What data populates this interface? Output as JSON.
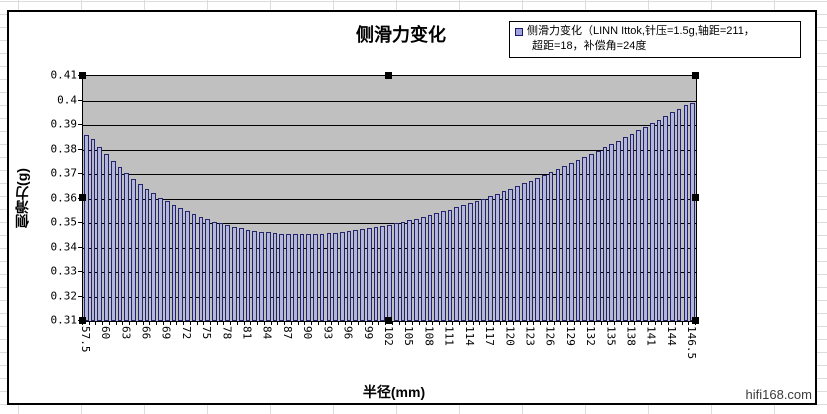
{
  "chart": {
    "title": "侧滑力变化",
    "legend": {
      "line1": "侧滑力变化（LINN Ittok,针压=1.5g,轴距=211，",
      "line2": "超距=18，补偿角=24度",
      "marker_color": "#9fa3de",
      "marker_border": "#1a1a6a"
    },
    "y_axis_title": "侧滑力(g)",
    "x_axis_title": "半径(mm)",
    "watermark": "hifi168.com"
  },
  "colors": {
    "plot_background": "#c0c0c0",
    "gridline": "#000000",
    "bar_fill": "#b2b6d8",
    "bar_border": "#24246e",
    "chart_border": "#000000"
  },
  "chart_data": {
    "type": "bar",
    "title": "侧滑力变化",
    "series_name": "侧滑力变化（LINN Ittok,针压=1.5g,轴距=211，超距=18，补偿角=24度",
    "xlabel": "半径(mm)",
    "ylabel": "侧滑力(g)",
    "ylim": [
      0.31,
      0.41
    ],
    "ytick_labels": [
      "0.41",
      "0.4",
      "0.39",
      "0.38",
      "0.37",
      "0.36",
      "0.35",
      "0.34",
      "0.33",
      "0.32",
      "0.31"
    ],
    "grid": true,
    "legend_position": "top-right",
    "x_label_shown_every": 3,
    "categories": [
      "57.5",
      "58",
      "59",
      "60",
      "61",
      "62",
      "63",
      "64",
      "65",
      "66",
      "67",
      "68",
      "69",
      "70",
      "71",
      "72",
      "73",
      "74",
      "75",
      "76",
      "77",
      "78",
      "79",
      "80",
      "81",
      "82",
      "83",
      "84",
      "85",
      "86",
      "87",
      "88",
      "89",
      "90",
      "91",
      "92",
      "93",
      "94",
      "95",
      "96",
      "97",
      "98",
      "99",
      "100",
      "101",
      "102",
      "103",
      "104",
      "105",
      "106",
      "107",
      "108",
      "109",
      "110",
      "111",
      "112",
      "113",
      "114",
      "115",
      "116",
      "117",
      "118",
      "119",
      "120",
      "121",
      "122",
      "123",
      "124",
      "125",
      "126",
      "127",
      "128",
      "129",
      "130",
      "131",
      "132",
      "133",
      "134",
      "135",
      "136",
      "137",
      "138",
      "139",
      "140",
      "141",
      "142",
      "143",
      "144",
      "145",
      "146",
      "146.5"
    ],
    "values": [
      0.386,
      0.3843,
      0.3812,
      0.3782,
      0.3754,
      0.3728,
      0.3704,
      0.3681,
      0.366,
      0.364,
      0.3622,
      0.3604,
      0.3588,
      0.3573,
      0.356,
      0.3547,
      0.3535,
      0.3525,
      0.3515,
      0.3506,
      0.3498,
      0.349,
      0.3484,
      0.3478,
      0.3473,
      0.3468,
      0.3465,
      0.3462,
      0.3459,
      0.3457,
      0.3456,
      0.3455,
      0.3455,
      0.3455,
      0.3456,
      0.3457,
      0.3459,
      0.3461,
      0.3463,
      0.3467,
      0.347,
      0.3474,
      0.3478,
      0.3483,
      0.3488,
      0.3493,
      0.3499,
      0.3505,
      0.3511,
      0.3518,
      0.3525,
      0.3532,
      0.3539,
      0.3547,
      0.3555,
      0.3564,
      0.3572,
      0.3581,
      0.359,
      0.36,
      0.361,
      0.362,
      0.363,
      0.364,
      0.3651,
      0.3662,
      0.3673,
      0.3684,
      0.3696,
      0.3707,
      0.3719,
      0.3732,
      0.3744,
      0.3756,
      0.3769,
      0.3782,
      0.3795,
      0.3809,
      0.3822,
      0.3836,
      0.385,
      0.3864,
      0.3878,
      0.3892,
      0.3907,
      0.3922,
      0.3936,
      0.3952,
      0.3967,
      0.3982,
      0.399
    ]
  }
}
